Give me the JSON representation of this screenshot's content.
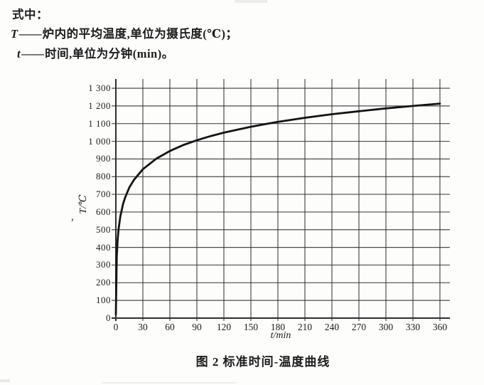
{
  "page": {
    "intro": "式中：",
    "definitions": [
      {
        "symbol": "T",
        "separator": "——",
        "description": "炉内的平均温度,单位为摄氏度(℃)；"
      },
      {
        "symbol": "t",
        "separator": "——",
        "description": "时间,单位为分钟(min)。"
      }
    ],
    "figure_caption": "图 2  标准时间-温度曲线"
  },
  "artifacts": {
    "stray_comma": ","
  },
  "chart_data": {
    "type": "line",
    "title": "标准时间-温度曲线",
    "xlabel": "t/min",
    "ylabel": "T/℃",
    "xlim": [
      0,
      371
    ],
    "ylim": [
      0,
      1365
    ],
    "grid": true,
    "legend": "none",
    "line_color": "#141414",
    "grid_color": "#2f2f2f",
    "x_ticks": [
      0,
      30,
      60,
      90,
      120,
      150,
      180,
      210,
      240,
      270,
      300,
      330,
      360
    ],
    "y_ticks": [
      0,
      100,
      200,
      300,
      400,
      500,
      600,
      700,
      800,
      900,
      1000,
      1100,
      1200,
      1300
    ],
    "y_tick_labels": [
      "0",
      "100",
      "200",
      "300",
      "400",
      "500",
      "600",
      "700",
      "800",
      "900",
      "1 000",
      "1 100",
      "1 200",
      "1 300"
    ],
    "series": [
      {
        "name": "标准时间-温度曲线",
        "x": [
          0,
          1,
          2,
          3,
          5,
          8,
          10,
          15,
          20,
          30,
          45,
          60,
          75,
          90,
          105,
          120,
          150,
          180,
          210,
          240,
          270,
          300,
          330,
          360
        ],
        "y": [
          20,
          349,
          444,
          502,
          576,
          645,
          678,
          739,
          781,
          842,
          902,
          945,
          979,
          1006,
          1029,
          1049,
          1082,
          1110,
          1133,
          1153,
          1170,
          1186,
          1200,
          1213
        ]
      }
    ]
  }
}
